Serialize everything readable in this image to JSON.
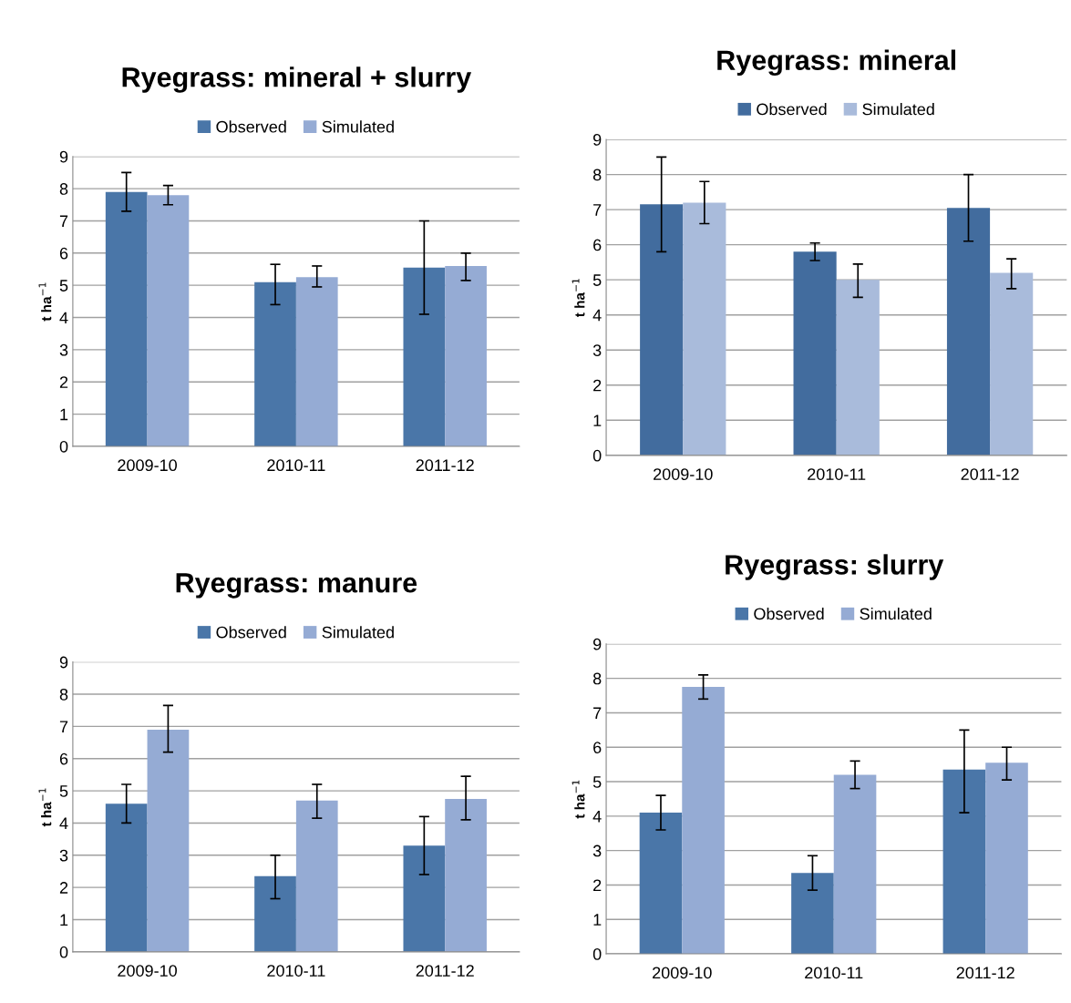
{
  "chart_data": [
    {
      "type": "bar",
      "title": "Ryegrass: mineral + slurry",
      "ylabel": "t ha$^{−1}$",
      "categories": [
        "2009-10",
        "2010-11",
        "2011-12"
      ],
      "ylim": [
        0,
        9
      ],
      "yticks": [
        0,
        1,
        2,
        3,
        4,
        5,
        6,
        7,
        8,
        9
      ],
      "grid": "y",
      "legend": "top",
      "series": [
        {
          "name": "Observed",
          "color": "#4a76a8",
          "values": [
            7.9,
            5.1,
            5.55
          ],
          "errors": [
            [
              7.3,
              8.5
            ],
            [
              4.4,
              5.65
            ],
            [
              4.1,
              7.0
            ]
          ]
        },
        {
          "name": "Simulated",
          "color": "#95abd4",
          "values": [
            7.8,
            5.25,
            5.6
          ],
          "errors": [
            [
              7.5,
              8.1
            ],
            [
              4.95,
              5.6
            ],
            [
              5.15,
              6.0
            ]
          ]
        }
      ]
    },
    {
      "type": "bar",
      "title": "Ryegrass: mineral",
      "ylabel": "t ha$^{−1}$",
      "categories": [
        "2009-10",
        "2010-11",
        "2011-12"
      ],
      "ylim": [
        0,
        9
      ],
      "yticks": [
        0,
        1,
        2,
        3,
        4,
        5,
        6,
        7,
        8,
        9
      ],
      "grid": "y",
      "legend": "top",
      "series": [
        {
          "name": "Observed",
          "color": "#426c9e",
          "values": [
            7.15,
            5.8,
            7.05
          ],
          "errors": [
            [
              5.8,
              8.5
            ],
            [
              5.55,
              6.05
            ],
            [
              6.1,
              8.0
            ]
          ]
        },
        {
          "name": "Simulated",
          "color": "#a9bbdb",
          "values": [
            7.2,
            5.0,
            5.2
          ],
          "errors": [
            [
              6.6,
              7.8
            ],
            [
              4.5,
              5.45
            ],
            [
              4.75,
              5.6
            ]
          ]
        }
      ]
    },
    {
      "type": "bar",
      "title": "Ryegrass: manure",
      "ylabel": "t ha$^{−1}$",
      "categories": [
        "2009-10",
        "2010-11",
        "2011-12"
      ],
      "ylim": [
        0,
        9
      ],
      "yticks": [
        0,
        1,
        2,
        3,
        4,
        5,
        6,
        7,
        8,
        9
      ],
      "grid": "y",
      "legend": "top",
      "series": [
        {
          "name": "Observed",
          "color": "#4a76a8",
          "values": [
            4.6,
            2.35,
            3.3
          ],
          "errors": [
            [
              4.0,
              5.2
            ],
            [
              1.65,
              3.0
            ],
            [
              2.4,
              4.2
            ]
          ]
        },
        {
          "name": "Simulated",
          "color": "#95abd4",
          "values": [
            6.9,
            4.7,
            4.75
          ],
          "errors": [
            [
              6.2,
              7.65
            ],
            [
              4.15,
              5.2
            ],
            [
              4.1,
              5.45
            ]
          ]
        }
      ]
    },
    {
      "type": "bar",
      "title": "Ryegrass: slurry",
      "ylabel": "t ha$^{−1}$",
      "categories": [
        "2009-10",
        "2010-11",
        "2011-12"
      ],
      "ylim": [
        0,
        9
      ],
      "yticks": [
        0,
        1,
        2,
        3,
        4,
        5,
        6,
        7,
        8,
        9
      ],
      "grid": "y",
      "legend": "top",
      "series": [
        {
          "name": "Observed",
          "color": "#4a76a8",
          "values": [
            4.1,
            2.35,
            5.35
          ],
          "errors": [
            [
              3.6,
              4.6
            ],
            [
              1.85,
              2.85
            ],
            [
              4.1,
              6.5
            ]
          ]
        },
        {
          "name": "Simulated",
          "color": "#95abd4",
          "values": [
            7.75,
            5.2,
            5.55
          ],
          "errors": [
            [
              7.4,
              8.1
            ],
            [
              4.8,
              5.6
            ],
            [
              5.05,
              6.0
            ]
          ]
        }
      ]
    }
  ]
}
